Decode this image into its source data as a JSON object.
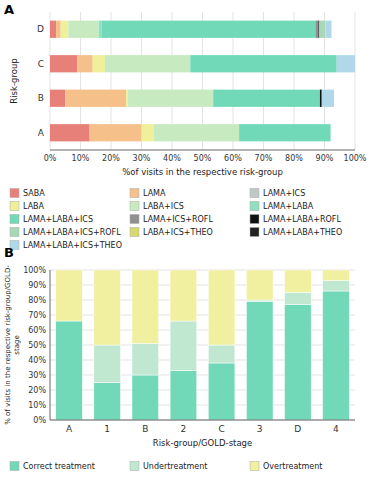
{
  "chart_data": [
    {
      "type": "bar",
      "orientation": "horizontal",
      "stacked": true,
      "title": "A",
      "xlabel": "%of visits in the respective risk-group",
      "ylabel": "Risk-group",
      "categories": [
        "A",
        "B",
        "C",
        "D"
      ],
      "series": [
        {
          "name": "SABA",
          "color": "#e8807a",
          "values": [
            0.13,
            0.05,
            0.09,
            0.02
          ]
        },
        {
          "name": "LAMA",
          "color": "#f5c08a",
          "values": [
            0.17,
            0.2,
            0.05,
            0.015
          ]
        },
        {
          "name": "LAMA+ICS",
          "color": "#c0c8c8",
          "values": [
            null,
            null,
            null,
            null
          ]
        },
        {
          "name": "LABA",
          "color": "#f0ef9a",
          "values": [
            0.04,
            0.005,
            0.04,
            0.025
          ]
        },
        {
          "name": "LABA+ICS",
          "color": "#c8eac0",
          "values": [
            0.28,
            0.28,
            0.28,
            0.1
          ]
        },
        {
          "name": "LAMA+LABA",
          "color": "#90e0c0",
          "values": [
            null,
            null,
            null,
            0.01
          ]
        },
        {
          "name": "LAMA+LABA+ICS",
          "color": "#72d9b8",
          "values": [
            0.3,
            0.35,
            0.48,
            0.7
          ]
        },
        {
          "name": "LAMA+ICS+ROFL",
          "color": "#909090",
          "values": [
            null,
            null,
            null,
            0.01
          ]
        },
        {
          "name": "LAMA+LABA+ROFL",
          "color": "#111111",
          "values": [
            null,
            0.006,
            null,
            0.003
          ]
        },
        {
          "name": "LAMA+LABA+ICS+ROFL",
          "color": "#a8d8b8",
          "values": [
            null,
            null,
            null,
            0.02
          ]
        },
        {
          "name": "LABA+ICS+THEO",
          "color": "#d8d870",
          "values": [
            null,
            null,
            null,
            null
          ]
        },
        {
          "name": "LAMA+LABA+THEO",
          "color": "#222222",
          "values": [
            null,
            null,
            null,
            null
          ]
        },
        {
          "name": "LAMA+LABA+ICS+THEO",
          "color": "#b0d8e8",
          "values": [
            null,
            0.04,
            0.06,
            0.02
          ]
        }
      ],
      "xlim": [
        0,
        1.0
      ],
      "xticks": [
        {
          "value": 0,
          "label": "0%"
        },
        {
          "value": 0.1,
          "label": "10%"
        },
        {
          "value": 0.2,
          "label": "20%"
        },
        {
          "value": 0.3,
          "label": "30%"
        },
        {
          "value": 0.4,
          "label": "40%"
        },
        {
          "value": 0.5,
          "label": "50%"
        },
        {
          "value": 0.6,
          "label": "60%"
        },
        {
          "value": 0.7,
          "label": "70%"
        },
        {
          "value": 0.8,
          "label": "80%"
        },
        {
          "value": 0.9,
          "label": "90%"
        },
        {
          "value": 1.0,
          "label": "100%"
        }
      ],
      "grid": true,
      "legend": "bottom"
    },
    {
      "type": "bar",
      "stacked": true,
      "title": "B",
      "xlabel": "Risk-group/GOLD-stage",
      "ylabel": "% of visits in the respective risk-group/GOLD-\nstage",
      "categories": [
        "A",
        "1",
        "B",
        "2",
        "C",
        "3",
        "D",
        "4"
      ],
      "series": [
        {
          "name": "Correct treatment",
          "color": "#72d9b8",
          "values": [
            66,
            25,
            30,
            33,
            38,
            79,
            77,
            86
          ]
        },
        {
          "name": "Undertreatment",
          "color": "#c0e8d0",
          "values": [
            0,
            25,
            21,
            33,
            12,
            1,
            8,
            7
          ]
        },
        {
          "name": "Overtreatment",
          "color": "#f0f0a0",
          "values": [
            34,
            50,
            49,
            34,
            50,
            20,
            15,
            7
          ]
        }
      ],
      "ylim": [
        0,
        100
      ],
      "yticks": [
        {
          "value": 0,
          "label": "0%"
        },
        {
          "value": 10,
          "label": "10%"
        },
        {
          "value": 20,
          "label": "20%"
        },
        {
          "value": 30,
          "label": "30%"
        },
        {
          "value": 40,
          "label": "40%"
        },
        {
          "value": 50,
          "label": "50%"
        },
        {
          "value": 60,
          "label": "60%"
        },
        {
          "value": 70,
          "label": "70%"
        },
        {
          "value": 80,
          "label": "80%"
        },
        {
          "value": 90,
          "label": "90%"
        },
        {
          "value": 100,
          "label": "100%"
        }
      ],
      "grid": true,
      "legend": "bottom"
    }
  ]
}
